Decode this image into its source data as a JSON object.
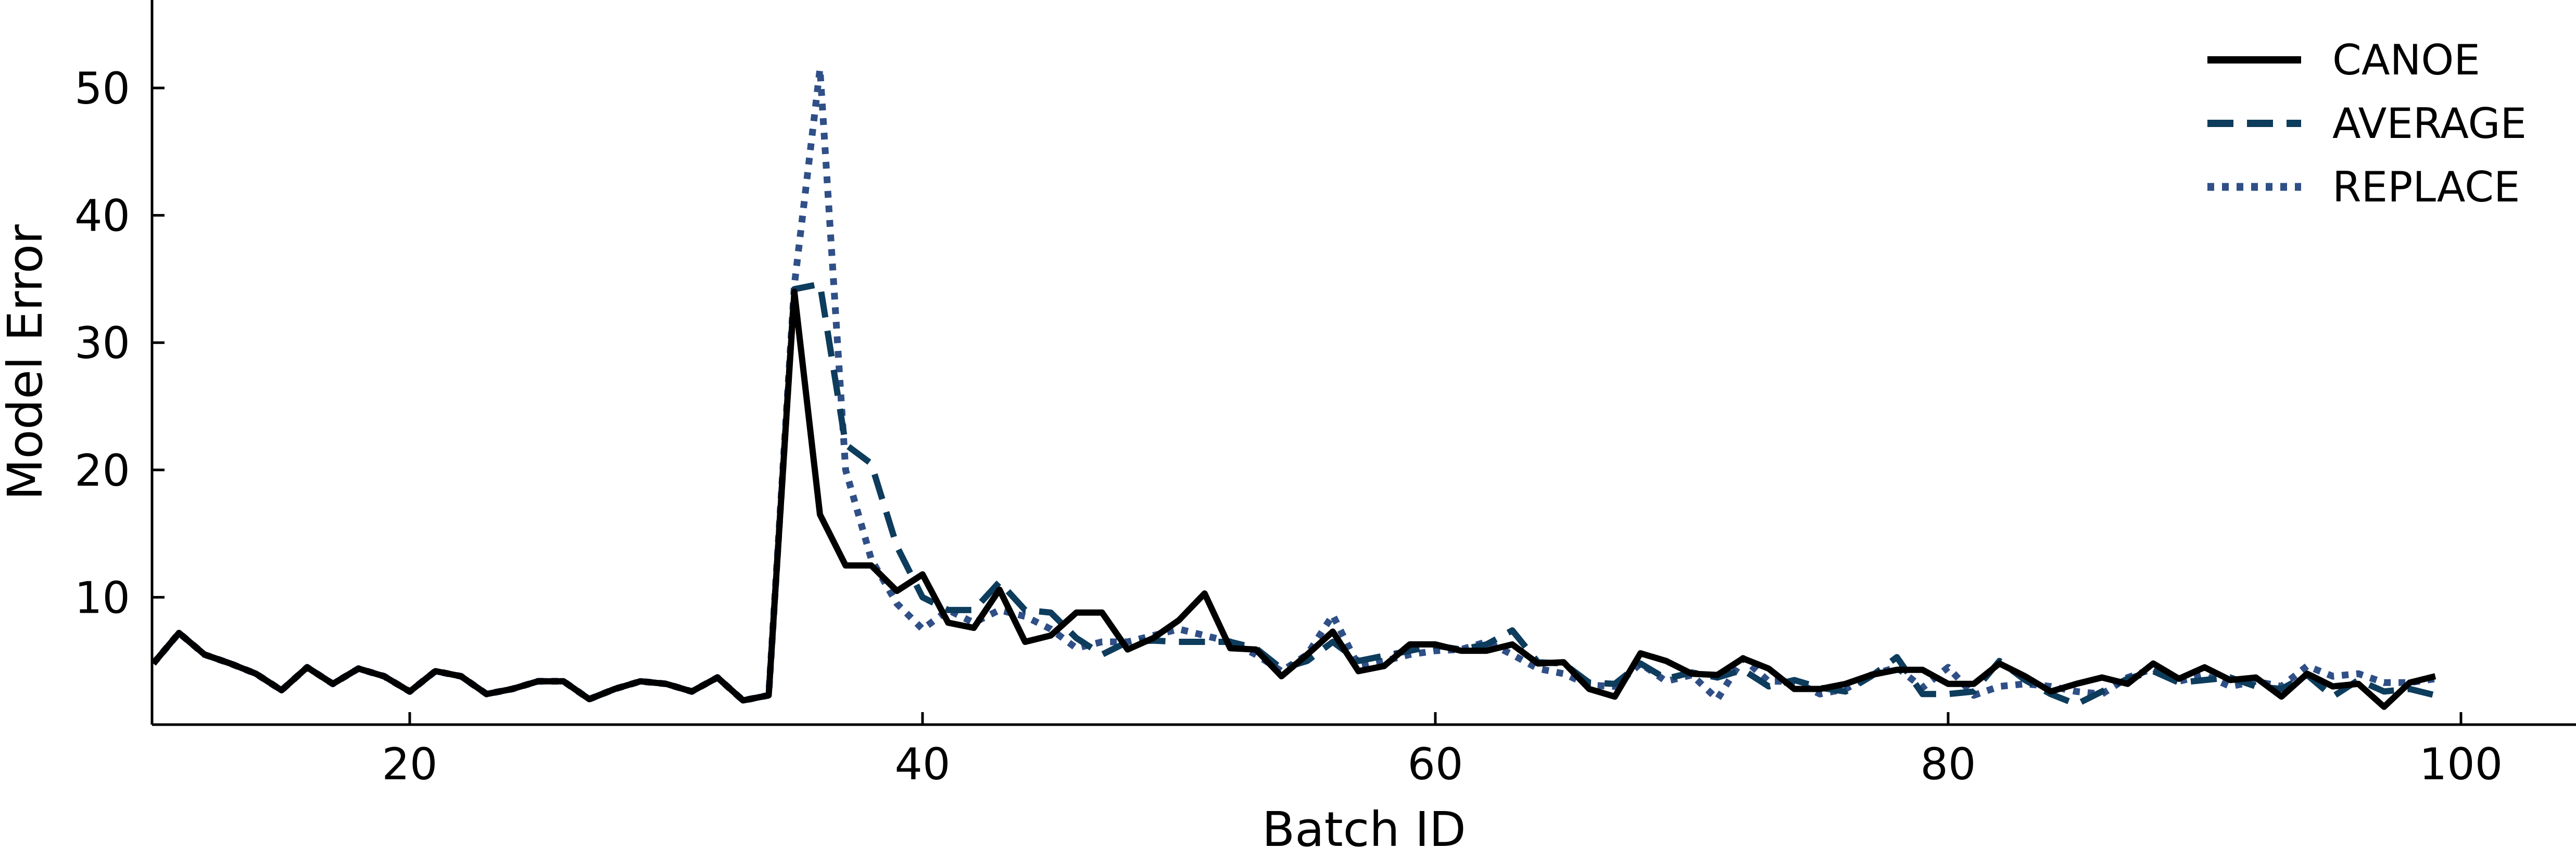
{
  "chart_data": {
    "type": "line",
    "title": "",
    "xlabel": "Batch ID",
    "ylabel": "Model Error",
    "xlim": [
      10,
      106
    ],
    "ylim": [
      0,
      56
    ],
    "xticks": [
      20,
      40,
      60,
      80,
      100
    ],
    "yticks": [
      10,
      20,
      30,
      40,
      50
    ],
    "grid": false,
    "legend_position": "top-right",
    "x": [
      10,
      11,
      12,
      13,
      14,
      15,
      16,
      17,
      18,
      19,
      20,
      21,
      22,
      23,
      24,
      25,
      26,
      27,
      28,
      29,
      30,
      31,
      32,
      33,
      34,
      35,
      36,
      37,
      38,
      39,
      40,
      41,
      42,
      43,
      44,
      45,
      46,
      47,
      48,
      49,
      50,
      51,
      52,
      53,
      54,
      55,
      56,
      57,
      58,
      59,
      60,
      61,
      62,
      63,
      64,
      65,
      66,
      67,
      68,
      69,
      70,
      71,
      72,
      73,
      74,
      75,
      76,
      77,
      78,
      79,
      80,
      81,
      82,
      83,
      84,
      85,
      86,
      87,
      88,
      89,
      90,
      91,
      92,
      93,
      94,
      95,
      96,
      97,
      98,
      99
    ],
    "series": [
      {
        "name": "CANOE",
        "color": "#000000",
        "dash": "solid",
        "values": [
          4.8,
          7.2,
          5.5,
          4.8,
          4.0,
          2.7,
          4.5,
          3.2,
          4.4,
          3.8,
          2.6,
          4.2,
          3.8,
          2.4,
          2.8,
          3.4,
          3.4,
          2.0,
          2.8,
          3.4,
          3.2,
          2.6,
          3.7,
          1.9,
          2.3,
          34.0,
          16.5,
          12.5,
          12.5,
          10.5,
          11.8,
          8.0,
          7.6,
          10.6,
          6.5,
          7.0,
          8.8,
          8.8,
          5.9,
          6.8,
          8.2,
          10.3,
          6.0,
          5.9,
          3.8,
          5.5,
          7.3,
          4.2,
          4.6,
          6.3,
          6.3,
          5.8,
          5.8,
          6.3,
          4.8,
          4.9,
          2.8,
          2.2,
          5.6,
          5.0,
          4.0,
          3.9,
          5.2,
          4.4,
          2.8,
          2.8,
          3.2,
          3.9,
          4.3,
          4.3,
          3.2,
          3.2,
          4.8,
          3.8,
          2.6,
          3.2,
          3.7,
          3.2,
          4.8,
          3.6,
          4.5,
          3.5,
          3.7,
          2.2,
          4.0,
          3.0,
          3.2,
          1.4,
          3.3,
          3.8
        ]
      },
      {
        "name": "AVERAGE",
        "color": "#0d3c5c",
        "dash": "dashed",
        "values": [
          4.8,
          7.2,
          5.5,
          4.8,
          4.0,
          2.7,
          4.5,
          3.2,
          4.4,
          3.8,
          2.6,
          4.2,
          3.8,
          2.4,
          2.8,
          3.4,
          3.4,
          2.0,
          2.8,
          3.4,
          3.2,
          2.6,
          3.7,
          1.9,
          2.3,
          34.2,
          34.6,
          22.0,
          20.5,
          14.0,
          10.0,
          9.0,
          9.0,
          11.2,
          9.0,
          8.8,
          6.8,
          5.5,
          6.5,
          6.6,
          6.5,
          6.5,
          6.5,
          6.0,
          4.4,
          5.0,
          6.5,
          5.0,
          5.4,
          5.8,
          6.2,
          5.9,
          6.3,
          7.4,
          4.9,
          4.8,
          3.3,
          3.2,
          4.8,
          3.6,
          4.1,
          3.7,
          4.3,
          3.0,
          3.5,
          2.9,
          2.6,
          3.8,
          5.3,
          2.4,
          2.4,
          2.6,
          5.0,
          3.5,
          2.4,
          1.6,
          2.6,
          3.6,
          4.2,
          3.3,
          3.5,
          3.7,
          3.0,
          2.8,
          3.9,
          2.2,
          3.5,
          2.6,
          2.8,
          2.3
        ]
      },
      {
        "name": "REPLACE",
        "color": "#2f4f86",
        "dash": "dotted",
        "values": [
          4.8,
          7.2,
          5.5,
          4.8,
          4.0,
          2.7,
          4.5,
          3.2,
          4.4,
          3.8,
          2.6,
          4.2,
          3.8,
          2.4,
          2.8,
          3.4,
          3.4,
          2.0,
          2.8,
          3.4,
          3.2,
          2.6,
          3.7,
          1.9,
          2.3,
          34.5,
          51.5,
          20.0,
          13.0,
          9.5,
          7.5,
          9.0,
          8.0,
          9.0,
          8.5,
          7.5,
          6.0,
          6.5,
          6.5,
          7.0,
          7.5,
          7.0,
          6.5,
          5.5,
          4.2,
          5.5,
          8.6,
          4.6,
          5.0,
          5.5,
          5.8,
          5.9,
          6.5,
          5.5,
          4.4,
          4.0,
          3.1,
          3.0,
          4.8,
          3.4,
          3.9,
          2.0,
          5.2,
          3.4,
          3.4,
          2.4,
          2.8,
          3.9,
          4.5,
          2.9,
          4.5,
          2.3,
          3.0,
          3.2,
          3.0,
          2.6,
          2.4,
          3.7,
          4.4,
          3.4,
          3.9,
          3.0,
          3.4,
          3.0,
          4.6,
          3.8,
          4.0,
          3.3,
          3.3,
          3.6
        ]
      }
    ]
  }
}
